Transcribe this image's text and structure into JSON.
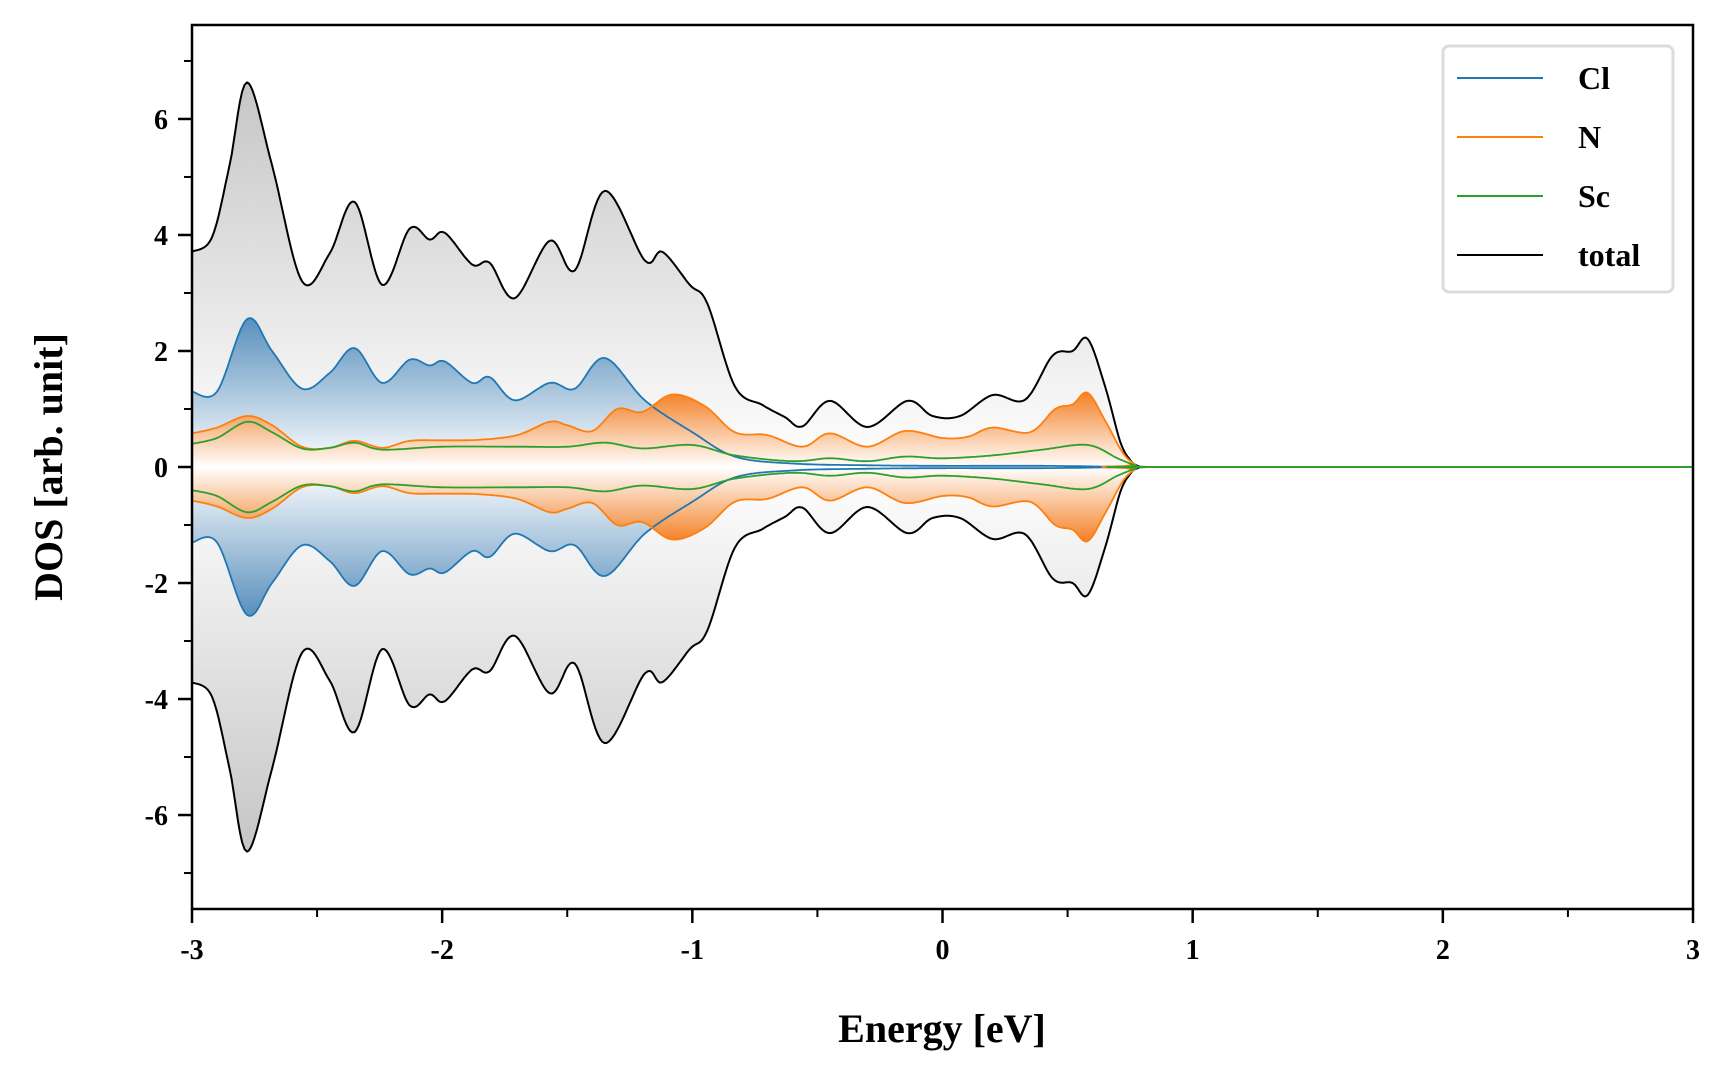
{
  "chart_data": {
    "type": "area",
    "title": "",
    "xlabel": "Energy [eV]",
    "ylabel": "DOS [arb. unit]",
    "xlim": [
      -3,
      3
    ],
    "ylim": [
      -7.62,
      7.62
    ],
    "xticks": [
      -3,
      -2,
      -1,
      0,
      1,
      2,
      3
    ],
    "xtick_labels": [
      "-3",
      "-2",
      "-1",
      "0",
      "1",
      "2",
      "3"
    ],
    "xminor": [
      -2.5,
      -1.5,
      -0.5,
      0.5,
      1.5,
      2.5
    ],
    "yticks": [
      -6,
      -4,
      -2,
      0,
      2,
      4,
      6
    ],
    "ytick_labels": [
      "-6",
      "-4",
      "-2",
      "0",
      "2",
      "4",
      "6"
    ],
    "yminor": [
      -7,
      -5,
      -3,
      -1,
      1,
      3,
      5,
      7
    ],
    "grid": false,
    "legend_position": "top-right",
    "mirrored": true,
    "series": [
      {
        "name": "total",
        "color": "#000000",
        "fill": "#b0b0b0",
        "x": [
          -3.0,
          -2.92,
          -2.85,
          -2.78,
          -2.68,
          -2.56,
          -2.45,
          -2.35,
          -2.24,
          -2.13,
          -2.05,
          -1.99,
          -1.88,
          -1.81,
          -1.71,
          -1.57,
          -1.47,
          -1.35,
          -1.19,
          -1.12,
          -1.01,
          -0.94,
          -0.83,
          -0.72,
          -0.63,
          -0.56,
          -0.45,
          -0.3,
          -0.14,
          -0.04,
          0.07,
          0.2,
          0.33,
          0.44,
          0.52,
          0.58,
          0.65,
          0.71,
          0.75,
          0.78,
          0.82,
          1.0,
          2.0,
          3.0
        ],
        "values": [
          3.71,
          3.96,
          5.2,
          6.63,
          5.2,
          3.2,
          3.68,
          4.57,
          3.14,
          4.11,
          3.92,
          4.04,
          3.49,
          3.52,
          2.91,
          3.9,
          3.39,
          4.76,
          3.56,
          3.71,
          3.14,
          2.82,
          1.39,
          1.07,
          0.86,
          0.7,
          1.14,
          0.69,
          1.14,
          0.88,
          0.88,
          1.24,
          1.16,
          1.92,
          2.0,
          2.21,
          1.39,
          0.44,
          0.12,
          0.02,
          0.0,
          0.0,
          0.0,
          0.0
        ]
      },
      {
        "name": "Cl",
        "color": "#1f77b4",
        "fill": "#4a86b8",
        "x": [
          -3.0,
          -2.9,
          -2.78,
          -2.68,
          -2.56,
          -2.45,
          -2.35,
          -2.24,
          -2.13,
          -2.05,
          -1.99,
          -1.88,
          -1.81,
          -1.71,
          -1.57,
          -1.47,
          -1.35,
          -1.19,
          -1.0,
          -0.83,
          -0.6,
          -0.3,
          0.0,
          0.4,
          0.75,
          0.8,
          3.0
        ],
        "values": [
          1.3,
          1.3,
          2.55,
          2.0,
          1.35,
          1.62,
          2.05,
          1.45,
          1.85,
          1.75,
          1.82,
          1.45,
          1.55,
          1.15,
          1.45,
          1.35,
          1.88,
          1.15,
          0.6,
          0.18,
          0.06,
          0.03,
          0.02,
          0.02,
          0.0,
          0.0,
          0.0
        ]
      },
      {
        "name": "N",
        "color": "#ff7f0e",
        "fill": "#f47a1a",
        "x": [
          -3.0,
          -2.9,
          -2.78,
          -2.68,
          -2.56,
          -2.45,
          -2.35,
          -2.24,
          -2.13,
          -2.0,
          -1.85,
          -1.7,
          -1.57,
          -1.5,
          -1.4,
          -1.3,
          -1.2,
          -1.08,
          -0.95,
          -0.83,
          -0.7,
          -0.56,
          -0.45,
          -0.3,
          -0.15,
          0.0,
          0.1,
          0.2,
          0.35,
          0.45,
          0.52,
          0.58,
          0.65,
          0.72,
          0.77,
          0.8,
          3.0
        ],
        "values": [
          0.58,
          0.68,
          0.88,
          0.72,
          0.35,
          0.33,
          0.45,
          0.33,
          0.45,
          0.46,
          0.47,
          0.55,
          0.78,
          0.72,
          0.62,
          1.0,
          0.95,
          1.25,
          1.05,
          0.6,
          0.55,
          0.35,
          0.58,
          0.35,
          0.62,
          0.5,
          0.52,
          0.68,
          0.6,
          1.0,
          1.08,
          1.28,
          0.8,
          0.25,
          0.04,
          0.0,
          0.0
        ]
      },
      {
        "name": "Sc",
        "color": "#2ca02c",
        "fill": "none",
        "x": [
          -3.0,
          -2.9,
          -2.78,
          -2.68,
          -2.56,
          -2.45,
          -2.35,
          -2.24,
          -2.0,
          -1.7,
          -1.5,
          -1.35,
          -1.2,
          -1.0,
          -0.83,
          -0.6,
          -0.45,
          -0.3,
          -0.15,
          0.0,
          0.2,
          0.4,
          0.58,
          0.7,
          0.78,
          0.8,
          3.0
        ],
        "values": [
          0.4,
          0.5,
          0.78,
          0.6,
          0.32,
          0.33,
          0.42,
          0.3,
          0.35,
          0.35,
          0.35,
          0.42,
          0.32,
          0.38,
          0.2,
          0.1,
          0.15,
          0.1,
          0.18,
          0.15,
          0.2,
          0.3,
          0.38,
          0.15,
          0.01,
          0.0,
          0.0
        ]
      }
    ],
    "legend": [
      {
        "label": "Cl",
        "color": "#1f77b4"
      },
      {
        "label": "N",
        "color": "#ff7f0e"
      },
      {
        "label": "Sc",
        "color": "#2ca02c"
      },
      {
        "label": "total",
        "color": "#000000"
      }
    ]
  }
}
